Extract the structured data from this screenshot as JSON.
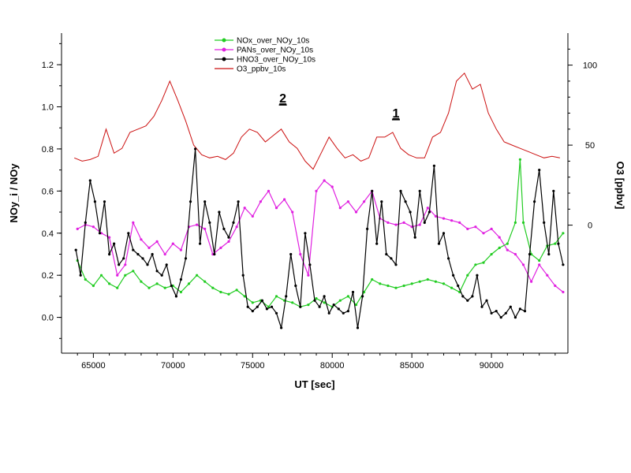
{
  "chart_data": {
    "type": "line",
    "xlabel": "UT [sec]",
    "ylabel": "NOy_i / NOy",
    "y2label": "O3 [ppbv]",
    "xlim": [
      63000,
      94800
    ],
    "ylim": [
      -0.17,
      1.35
    ],
    "y2lim": [
      -80,
      120
    ],
    "grid": false,
    "legend_position": "top-center",
    "x_ticks": [
      "65000",
      "70000",
      "75000",
      "80000",
      "85000",
      "90000"
    ],
    "y_ticks": [
      "0.0",
      "0.2",
      "0.4",
      "0.6",
      "0.8",
      "1.0",
      "1.2"
    ],
    "y2_ticks": [
      "0",
      "50",
      "100"
    ],
    "annotations": [
      {
        "text": "2",
        "x": 76900,
        "y": 1.02
      },
      {
        "text": "1",
        "x": 84000,
        "y": 0.95
      }
    ],
    "series": [
      {
        "name": "NOx_over_NOy_10s",
        "color": "#22cc22",
        "axis": "left",
        "x": [
          64000,
          64500,
          65000,
          65500,
          66000,
          66500,
          67000,
          67500,
          68000,
          68500,
          69000,
          69500,
          70000,
          70500,
          71000,
          71500,
          72000,
          72500,
          73000,
          73500,
          74000,
          74500,
          75000,
          75500,
          76000,
          76500,
          77000,
          77500,
          78000,
          78500,
          79000,
          79500,
          80000,
          80500,
          81000,
          81500,
          82000,
          82500,
          83000,
          83500,
          84000,
          84500,
          85000,
          85500,
          86000,
          86500,
          87000,
          87500,
          88000,
          88500,
          89000,
          89500,
          90000,
          90500,
          91000,
          91500,
          91800,
          92000,
          92500,
          93000,
          93500,
          94000,
          94500
        ],
        "y": [
          0.27,
          0.18,
          0.15,
          0.2,
          0.16,
          0.14,
          0.2,
          0.22,
          0.17,
          0.14,
          0.16,
          0.14,
          0.15,
          0.12,
          0.16,
          0.2,
          0.17,
          0.14,
          0.12,
          0.11,
          0.13,
          0.1,
          0.07,
          0.08,
          0.05,
          0.1,
          0.08,
          0.07,
          0.05,
          0.06,
          0.09,
          0.07,
          0.05,
          0.08,
          0.1,
          0.06,
          0.12,
          0.18,
          0.16,
          0.15,
          0.14,
          0.15,
          0.16,
          0.17,
          0.18,
          0.17,
          0.16,
          0.14,
          0.12,
          0.2,
          0.25,
          0.26,
          0.3,
          0.33,
          0.35,
          0.45,
          0.75,
          0.45,
          0.3,
          0.27,
          0.34,
          0.35,
          0.4
        ]
      },
      {
        "name": "PANs_over_NOy_10s",
        "color": "#e020e0",
        "axis": "left",
        "x": [
          64000,
          64500,
          65000,
          65500,
          66000,
          66500,
          67000,
          67500,
          68000,
          68500,
          69000,
          69500,
          70000,
          70500,
          71000,
          71500,
          72000,
          72500,
          73000,
          73500,
          74000,
          74500,
          75000,
          75500,
          76000,
          76500,
          77000,
          77500,
          78000,
          78500,
          79000,
          79500,
          80000,
          80500,
          81000,
          81500,
          82000,
          82500,
          83000,
          83500,
          84000,
          84500,
          85000,
          85500,
          86000,
          86500,
          87000,
          87500,
          88000,
          88500,
          89000,
          89500,
          90000,
          90500,
          91000,
          91500,
          92000,
          92500,
          93000,
          93500,
          94000,
          94500
        ],
        "y": [
          0.42,
          0.44,
          0.43,
          0.4,
          0.38,
          0.2,
          0.25,
          0.45,
          0.37,
          0.33,
          0.36,
          0.3,
          0.35,
          0.32,
          0.43,
          0.44,
          0.42,
          0.3,
          0.33,
          0.36,
          0.43,
          0.52,
          0.48,
          0.55,
          0.6,
          0.52,
          0.56,
          0.5,
          0.3,
          0.2,
          0.6,
          0.65,
          0.62,
          0.52,
          0.55,
          0.5,
          0.55,
          0.6,
          0.47,
          0.45,
          0.44,
          0.45,
          0.43,
          0.44,
          0.52,
          0.48,
          0.47,
          0.46,
          0.45,
          0.42,
          0.43,
          0.4,
          0.42,
          0.38,
          0.32,
          0.3,
          0.25,
          0.17,
          0.25,
          0.2,
          0.15,
          0.12
        ]
      },
      {
        "name": "HNO3_over_NOy_10s",
        "color": "#000000",
        "axis": "left",
        "x": [
          63900,
          64200,
          64500,
          64800,
          65100,
          65400,
          65700,
          66000,
          66300,
          66600,
          66900,
          67200,
          67500,
          67800,
          68100,
          68400,
          68700,
          69000,
          69300,
          69600,
          69900,
          70200,
          70500,
          70800,
          71100,
          71400,
          71700,
          72000,
          72300,
          72600,
          72900,
          73200,
          73500,
          73800,
          74100,
          74400,
          74700,
          75000,
          75300,
          75600,
          75900,
          76200,
          76500,
          76800,
          77100,
          77400,
          77700,
          78000,
          78300,
          78600,
          78900,
          79200,
          79500,
          79800,
          80100,
          80400,
          80700,
          81000,
          81300,
          81600,
          81900,
          82200,
          82500,
          82800,
          83100,
          83400,
          83700,
          84000,
          84300,
          84600,
          84900,
          85200,
          85500,
          85800,
          86100,
          86400,
          86700,
          87000,
          87300,
          87600,
          87900,
          88200,
          88500,
          88800,
          89100,
          89400,
          89700,
          90000,
          90300,
          90600,
          90900,
          91200,
          91500,
          91800,
          92100,
          92400,
          92700,
          93000,
          93300,
          93600,
          93900,
          94200,
          94500
        ],
        "y": [
          0.32,
          0.2,
          0.45,
          0.65,
          0.55,
          0.4,
          0.55,
          0.3,
          0.35,
          0.25,
          0.28,
          0.4,
          0.32,
          0.3,
          0.28,
          0.25,
          0.3,
          0.22,
          0.2,
          0.25,
          0.15,
          0.1,
          0.18,
          0.28,
          0.55,
          0.8,
          0.35,
          0.55,
          0.45,
          0.3,
          0.5,
          0.42,
          0.38,
          0.45,
          0.55,
          0.2,
          0.05,
          0.03,
          0.05,
          0.08,
          0.04,
          0.05,
          0.02,
          -0.05,
          0.1,
          0.3,
          0.15,
          0.05,
          0.4,
          0.25,
          0.08,
          0.05,
          0.1,
          0.02,
          0.06,
          0.04,
          0.02,
          0.03,
          0.12,
          -0.05,
          0.1,
          0.42,
          0.6,
          0.35,
          0.55,
          0.3,
          0.28,
          0.25,
          0.6,
          0.55,
          0.5,
          0.38,
          0.6,
          0.45,
          0.5,
          0.72,
          0.35,
          0.4,
          0.28,
          0.2,
          0.15,
          0.1,
          0.08,
          0.1,
          0.2,
          0.05,
          0.08,
          0.02,
          0.03,
          0.0,
          0.02,
          0.05,
          0.0,
          0.04,
          0.03,
          0.3,
          0.55,
          0.7,
          0.45,
          0.3,
          0.6,
          0.35,
          0.25
        ]
      },
      {
        "name": "O3_ppbv_10s",
        "color": "#cc1111",
        "axis": "right",
        "x": [
          63800,
          64300,
          64800,
          65300,
          65800,
          66300,
          66800,
          67300,
          67800,
          68300,
          68800,
          69300,
          69800,
          70300,
          70800,
          71300,
          71800,
          72300,
          72800,
          73300,
          73800,
          74300,
          74800,
          75300,
          75800,
          76300,
          76800,
          77300,
          77800,
          78300,
          78800,
          79300,
          79800,
          80300,
          80800,
          81300,
          81800,
          82300,
          82800,
          83300,
          83800,
          84300,
          84800,
          85300,
          85800,
          86300,
          86800,
          87300,
          87800,
          88300,
          88800,
          89300,
          89800,
          90300,
          90800,
          91300,
          91800,
          92300,
          92800,
          93300,
          93800,
          94300
        ],
        "y": [
          42,
          40,
          41,
          43,
          60,
          45,
          48,
          58,
          60,
          62,
          68,
          78,
          90,
          78,
          65,
          50,
          44,
          42,
          43,
          41,
          45,
          55,
          60,
          58,
          52,
          56,
          60,
          52,
          48,
          40,
          35,
          45,
          55,
          48,
          42,
          44,
          40,
          42,
          55,
          55,
          58,
          48,
          44,
          42,
          42,
          55,
          58,
          70,
          90,
          95,
          85,
          88,
          70,
          60,
          52,
          50,
          48,
          46,
          44,
          42,
          43,
          42
        ]
      }
    ]
  }
}
